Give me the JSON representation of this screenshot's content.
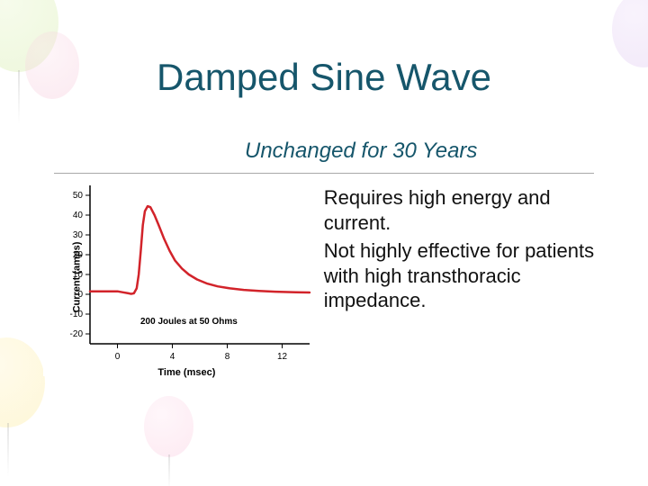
{
  "title": "Damped Sine Wave",
  "subtitle": "Unchanged for 30 Years",
  "bullets": [
    "Requires high energy and current.",
    "Not highly effective for patients with high transthoracic impedance."
  ],
  "chart": {
    "type": "line",
    "title_inside": "200 Joules at 50 Ohms",
    "xlabel": "Time (msec)",
    "ylabel": "Current (amps)",
    "xlim": [
      -2,
      14
    ],
    "ylim": [
      -25,
      55
    ],
    "xticks": [
      0,
      4,
      8,
      12
    ],
    "yticks": [
      -20,
      -10,
      0,
      10,
      20,
      30,
      40,
      50
    ],
    "line_color": "#d2232a",
    "line_width": 2.5,
    "axis_color": "#000000",
    "tick_color": "#000000",
    "background_color": "#ffffff",
    "label_fontsize": 11,
    "tick_fontsize": 10,
    "data": [
      [
        -2,
        1.5
      ],
      [
        -1,
        1.5
      ],
      [
        0,
        1.5
      ],
      [
        0.4,
        1.0
      ],
      [
        0.8,
        0.5
      ],
      [
        1.0,
        0.2
      ],
      [
        1.2,
        0.5
      ],
      [
        1.4,
        3
      ],
      [
        1.55,
        10
      ],
      [
        1.7,
        22
      ],
      [
        1.85,
        35
      ],
      [
        2.0,
        42
      ],
      [
        2.2,
        44.5
      ],
      [
        2.4,
        44
      ],
      [
        2.7,
        40
      ],
      [
        3.0,
        35
      ],
      [
        3.4,
        28
      ],
      [
        3.8,
        22
      ],
      [
        4.2,
        17
      ],
      [
        4.7,
        13
      ],
      [
        5.2,
        10
      ],
      [
        5.8,
        7.5
      ],
      [
        6.5,
        5.5
      ],
      [
        7.3,
        4
      ],
      [
        8.2,
        3
      ],
      [
        9.2,
        2.2
      ],
      [
        10.3,
        1.7
      ],
      [
        11.5,
        1.3
      ],
      [
        13,
        1.0
      ],
      [
        14,
        0.9
      ]
    ]
  },
  "colors": {
    "heading": "#16566b",
    "text": "#111111"
  }
}
